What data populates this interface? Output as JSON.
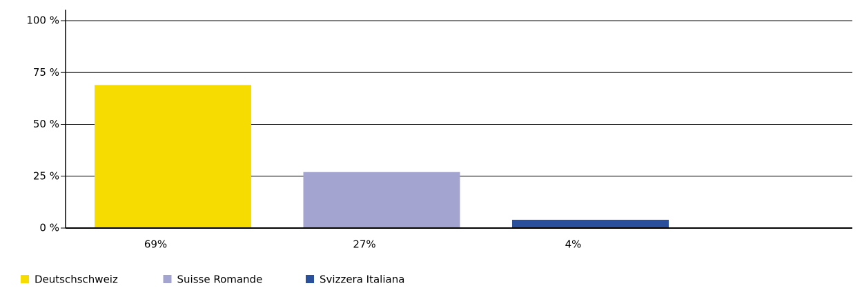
{
  "chart_data": {
    "type": "bar",
    "categories": [
      "Deutschschweiz",
      "Suisse Romande",
      "Svizzera Italiana"
    ],
    "values": [
      69,
      27,
      4
    ],
    "value_labels": [
      "69%",
      "27%",
      "4%"
    ],
    "colors": [
      "#f7dc00",
      "#a3a4d0",
      "#2a4f9b"
    ],
    "ylim": [
      0,
      100
    ],
    "yticks": [
      {
        "value": 0,
        "label": "0 %"
      },
      {
        "value": 25,
        "label": "25 %"
      },
      {
        "value": 50,
        "label": "50 %"
      },
      {
        "value": 75,
        "label": "75 %"
      },
      {
        "value": 100,
        "label": "100 %"
      }
    ],
    "grid": true,
    "legend": "bottom-left"
  }
}
